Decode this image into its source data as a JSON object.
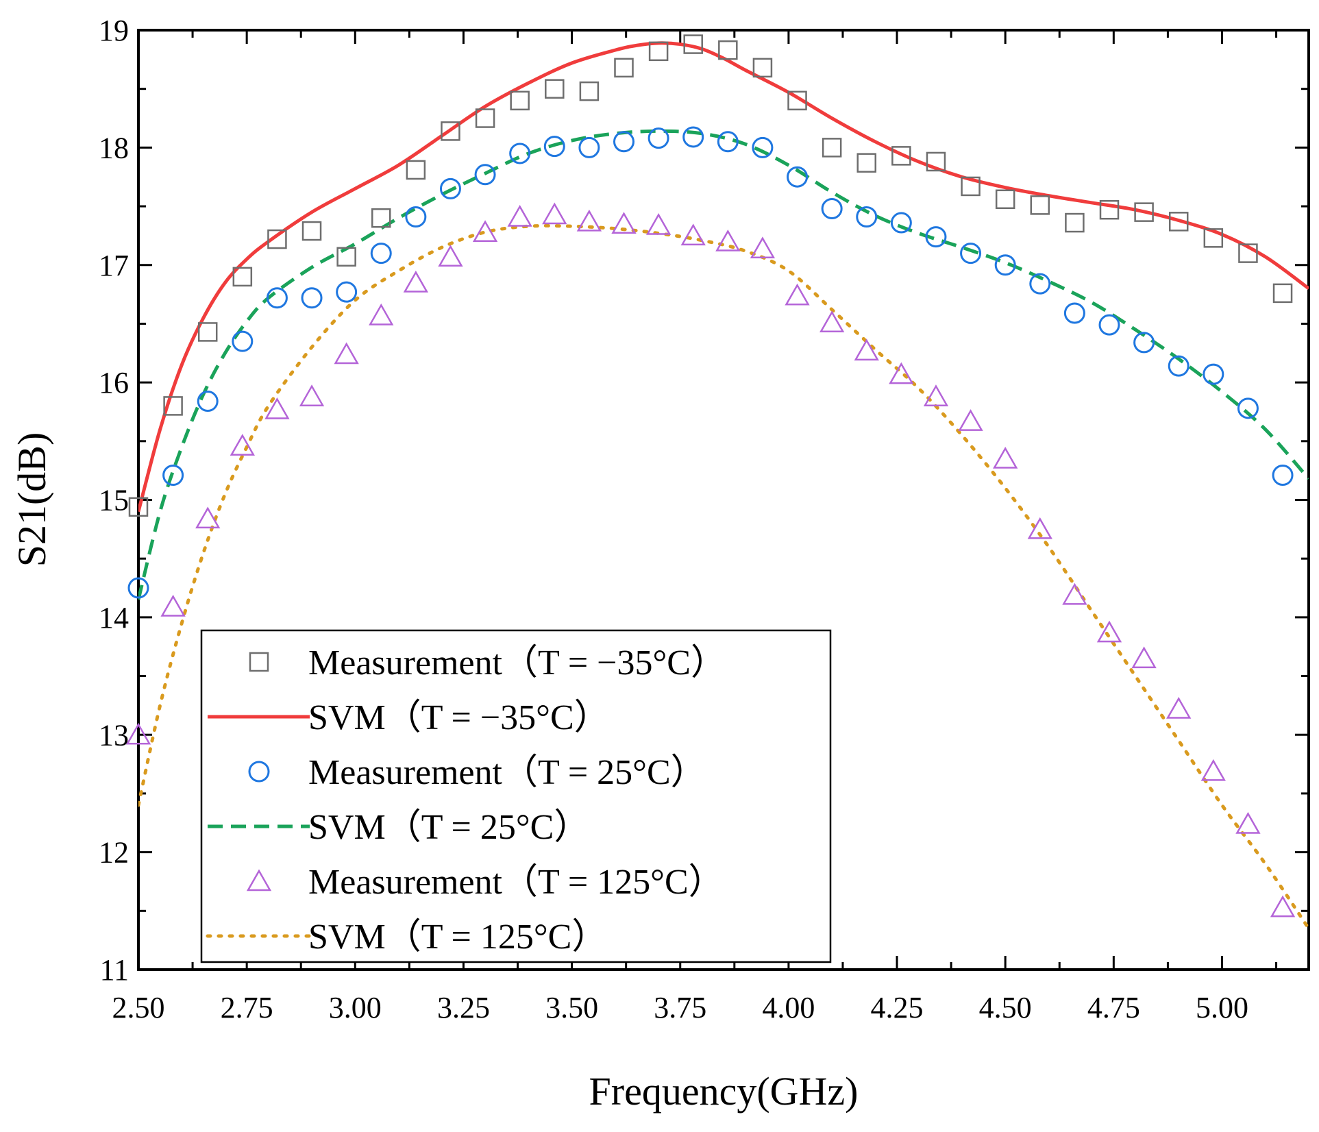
{
  "chart_data": {
    "type": "line",
    "title": "",
    "xlabel": "Frequency(GHz)",
    "ylabel": "S21(dB)",
    "xlim": [
      2.5,
      5.2
    ],
    "ylim": [
      11,
      19
    ],
    "xticks": [
      2.5,
      2.75,
      3.0,
      3.25,
      3.5,
      3.75,
      4.0,
      4.25,
      4.5,
      4.75,
      5.0
    ],
    "xtick_labels": [
      "2.50",
      "2.75",
      "3.00",
      "3.25",
      "3.50",
      "3.75",
      "4.00",
      "4.25",
      "4.50",
      "4.75",
      "5.00"
    ],
    "yticks": [
      11,
      12,
      13,
      14,
      15,
      16,
      17,
      18,
      19
    ],
    "ytick_labels": [
      "11",
      "12",
      "13",
      "14",
      "15",
      "16",
      "17",
      "18",
      "19"
    ],
    "grid": false,
    "legend_position": "bottom-left",
    "series": [
      {
        "name": "Measurement（T = −35°C）",
        "kind": "marker",
        "marker": "square",
        "color": "#6e6e6e",
        "x": [
          2.5,
          2.58,
          2.66,
          2.74,
          2.82,
          2.9,
          2.98,
          3.06,
          3.14,
          3.22,
          3.3,
          3.38,
          3.46,
          3.54,
          3.62,
          3.7,
          3.78,
          3.86,
          3.94,
          4.02,
          4.1,
          4.18,
          4.26,
          4.34,
          4.42,
          4.5,
          4.58,
          4.66,
          4.74,
          4.82,
          4.9,
          4.98,
          5.06,
          5.14
        ],
        "y": [
          14.94,
          15.8,
          16.43,
          16.9,
          17.22,
          17.29,
          17.07,
          17.4,
          17.81,
          18.14,
          18.25,
          18.4,
          18.5,
          18.48,
          18.68,
          18.82,
          18.88,
          18.83,
          18.68,
          18.4,
          18.0,
          17.87,
          17.93,
          17.88,
          17.67,
          17.56,
          17.51,
          17.36,
          17.47,
          17.45,
          17.37,
          17.23,
          17.1,
          16.76
        ]
      },
      {
        "name": "SVM（T = −35°C）",
        "kind": "line",
        "style": "solid",
        "color": "#f03c3c",
        "x": [
          2.5,
          2.55,
          2.6,
          2.65,
          2.7,
          2.75,
          2.8,
          2.9,
          3.0,
          3.1,
          3.2,
          3.3,
          3.4,
          3.5,
          3.6,
          3.65,
          3.7,
          3.75,
          3.8,
          3.85,
          3.9,
          4.0,
          4.1,
          4.2,
          4.3,
          4.4,
          4.5,
          4.6,
          4.7,
          4.8,
          4.9,
          5.0,
          5.1,
          5.2
        ],
        "y": [
          14.9,
          15.6,
          16.15,
          16.55,
          16.85,
          17.05,
          17.2,
          17.45,
          17.65,
          17.85,
          18.1,
          18.35,
          18.55,
          18.72,
          18.83,
          18.87,
          18.89,
          18.88,
          18.84,
          18.76,
          18.66,
          18.47,
          18.25,
          18.05,
          17.88,
          17.75,
          17.66,
          17.59,
          17.53,
          17.47,
          17.38,
          17.26,
          17.07,
          16.8
        ]
      },
      {
        "name": "Measurement（T = 25°C）",
        "kind": "marker",
        "marker": "circle",
        "color": "#1f77e0",
        "x": [
          2.5,
          2.58,
          2.66,
          2.74,
          2.82,
          2.9,
          2.98,
          3.06,
          3.14,
          3.22,
          3.3,
          3.38,
          3.46,
          3.54,
          3.62,
          3.7,
          3.78,
          3.86,
          3.94,
          4.02,
          4.1,
          4.18,
          4.26,
          4.34,
          4.42,
          4.5,
          4.58,
          4.66,
          4.74,
          4.82,
          4.9,
          4.98,
          5.06,
          5.14
        ],
        "y": [
          14.25,
          15.21,
          15.84,
          16.35,
          16.72,
          16.72,
          16.77,
          17.1,
          17.41,
          17.65,
          17.77,
          17.95,
          18.01,
          18.0,
          18.05,
          18.08,
          18.09,
          18.05,
          18.0,
          17.75,
          17.48,
          17.41,
          17.36,
          17.24,
          17.1,
          17.0,
          16.84,
          16.59,
          16.49,
          16.34,
          16.14,
          16.07,
          15.78,
          15.21
        ]
      },
      {
        "name": "SVM（T = 25°C）",
        "kind": "line",
        "style": "dashed",
        "color": "#1aa35a",
        "x": [
          2.5,
          2.55,
          2.6,
          2.65,
          2.7,
          2.75,
          2.8,
          2.9,
          3.0,
          3.1,
          3.2,
          3.3,
          3.4,
          3.5,
          3.6,
          3.7,
          3.8,
          3.9,
          4.0,
          4.1,
          4.2,
          4.3,
          4.4,
          4.5,
          4.6,
          4.7,
          4.8,
          4.9,
          5.0,
          5.1,
          5.2
        ],
        "y": [
          14.15,
          14.9,
          15.45,
          15.9,
          16.25,
          16.52,
          16.72,
          16.98,
          17.18,
          17.4,
          17.6,
          17.78,
          17.95,
          18.06,
          18.12,
          18.14,
          18.12,
          18.03,
          17.85,
          17.62,
          17.42,
          17.27,
          17.15,
          17.02,
          16.86,
          16.68,
          16.45,
          16.2,
          15.92,
          15.6,
          15.18
        ]
      },
      {
        "name": "Measurement（T = 125°C）",
        "kind": "marker",
        "marker": "triangle",
        "color": "#b464d8",
        "x": [
          2.5,
          2.58,
          2.66,
          2.74,
          2.82,
          2.9,
          2.98,
          3.06,
          3.14,
          3.22,
          3.3,
          3.38,
          3.46,
          3.54,
          3.62,
          3.7,
          3.78,
          3.86,
          3.94,
          4.02,
          4.1,
          4.18,
          4.26,
          4.34,
          4.42,
          4.5,
          4.58,
          4.66,
          4.74,
          4.82,
          4.9,
          4.98,
          5.06,
          5.14
        ],
        "y": [
          13.0,
          14.09,
          14.84,
          15.46,
          15.77,
          15.88,
          16.24,
          16.57,
          16.85,
          17.07,
          17.28,
          17.41,
          17.43,
          17.37,
          17.35,
          17.34,
          17.25,
          17.2,
          17.14,
          16.74,
          16.51,
          16.27,
          16.07,
          15.88,
          15.67,
          15.35,
          14.75,
          14.19,
          13.87,
          13.65,
          13.22,
          12.69,
          12.24,
          11.53
        ]
      },
      {
        "name": "SVM（T = 125°C）",
        "kind": "line",
        "style": "dotted",
        "color": "#d99a1e",
        "x": [
          2.5,
          2.55,
          2.6,
          2.65,
          2.7,
          2.75,
          2.8,
          2.9,
          3.0,
          3.1,
          3.2,
          3.3,
          3.4,
          3.5,
          3.6,
          3.7,
          3.8,
          3.9,
          4.0,
          4.1,
          4.2,
          4.3,
          4.4,
          4.5,
          4.6,
          4.7,
          4.8,
          4.9,
          5.0,
          5.1,
          5.2
        ],
        "y": [
          12.4,
          13.25,
          13.95,
          14.55,
          15.05,
          15.45,
          15.8,
          16.3,
          16.7,
          16.95,
          17.15,
          17.28,
          17.33,
          17.33,
          17.31,
          17.27,
          17.21,
          17.12,
          16.95,
          16.62,
          16.28,
          15.95,
          15.55,
          15.1,
          14.6,
          14.05,
          13.5,
          12.95,
          12.4,
          11.9,
          11.35
        ]
      }
    ]
  }
}
